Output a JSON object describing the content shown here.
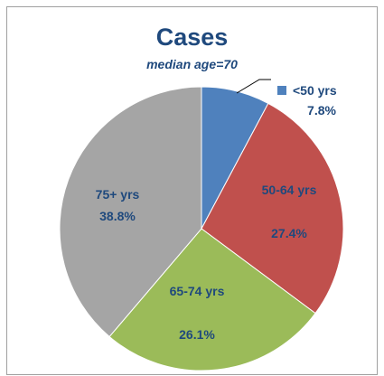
{
  "chart_data": {
    "type": "pie",
    "title": "Cases",
    "subtitle": "median age=70",
    "categories": [
      "<50 yrs",
      "50-64 yrs",
      "65-74 yrs",
      "75+ yrs"
    ],
    "values": [
      7.8,
      27.4,
      26.1,
      38.8
    ],
    "value_labels": [
      "7.8%",
      "27.4%",
      "26.1%",
      "38.8%"
    ],
    "colors": [
      "#4f81bd",
      "#c0504d",
      "#9bbb59",
      "#a5a5a5"
    ]
  }
}
